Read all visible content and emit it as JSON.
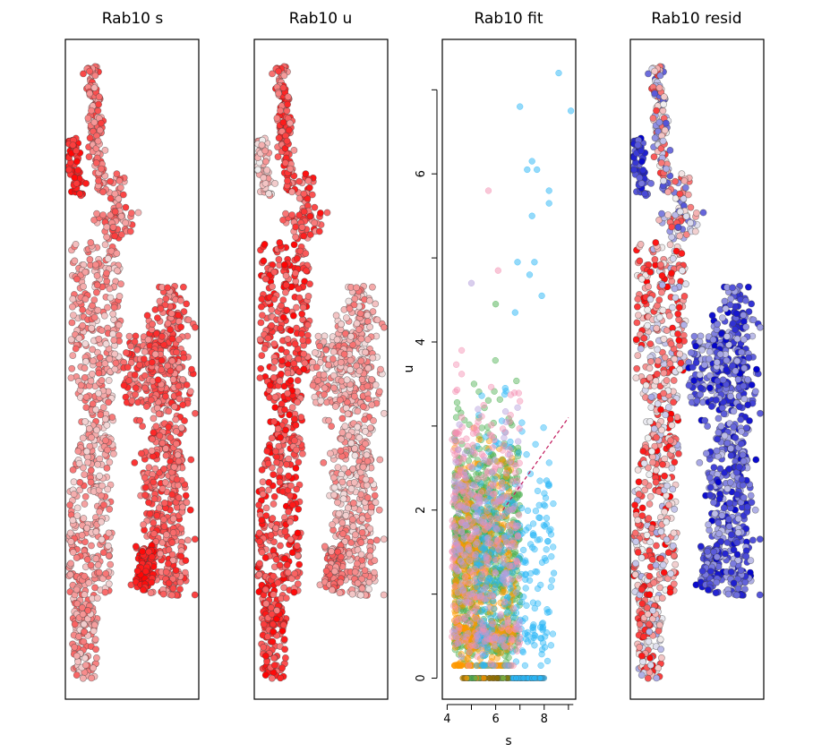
{
  "chart_data": [
    {
      "type": "scatter",
      "title": "Rab10 s",
      "panel": "embedding",
      "color_scale": [
        "#f0f0f0",
        "#ff0000"
      ],
      "clusters": [
        {
          "name": "upper-stem",
          "points": 220,
          "value_low": 0.25,
          "value_high": 0.75
        },
        {
          "name": "left-hook",
          "points": 60,
          "value_low": 0.7,
          "value_high": 1.0
        },
        {
          "name": "left-column",
          "points": 650,
          "value_low": 0.1,
          "value_high": 0.6
        },
        {
          "name": "right-loop",
          "points": 700,
          "value_low": 0.35,
          "value_high": 0.85
        },
        {
          "name": "bottom-blob",
          "points": 80,
          "value_low": 0.8,
          "value_high": 1.0
        }
      ]
    },
    {
      "type": "scatter",
      "title": "Rab10 u",
      "panel": "embedding",
      "color_scale": [
        "#f0f0f0",
        "#ff0000"
      ],
      "clusters": [
        {
          "name": "upper-stem",
          "points": 220,
          "value_low": 0.35,
          "value_high": 0.95
        },
        {
          "name": "left-hook",
          "points": 60,
          "value_low": 0.0,
          "value_high": 0.4
        },
        {
          "name": "left-column",
          "points": 650,
          "value_low": 0.45,
          "value_high": 1.0
        },
        {
          "name": "right-loop",
          "points": 700,
          "value_low": 0.05,
          "value_high": 0.55
        },
        {
          "name": "bottom-blob",
          "points": 80,
          "value_low": 0.3,
          "value_high": 0.7
        }
      ]
    },
    {
      "type": "scatter",
      "title": "Rab10 fit",
      "panel": "phase",
      "xlabel": "s",
      "ylabel": "u",
      "xlim": [
        3.8,
        9.3
      ],
      "ylim": [
        -0.25,
        7.6
      ],
      "xticks": [
        4,
        6,
        8
      ],
      "yticks": [
        0,
        2,
        4,
        6
      ],
      "fit_line": {
        "x": [
          6.3,
          9.0
        ],
        "y": [
          2.0,
          3.1
        ],
        "color": "#c2185b"
      },
      "series": [
        {
          "name": "green",
          "color": "#4caf50",
          "count": 900,
          "s_range": [
            4.3,
            7.0
          ],
          "u_mean": 1.6
        },
        {
          "name": "orange",
          "color": "#ff9800",
          "count": 450,
          "s_range": [
            4.3,
            6.8
          ],
          "u_mean": 1.2
        },
        {
          "name": "cyan",
          "color": "#29b6f6",
          "count": 300,
          "s_range": [
            5.2,
            8.4
          ],
          "u_mean": 1.5
        },
        {
          "name": "pink",
          "color": "#f48fb1",
          "count": 300,
          "s_range": [
            4.2,
            7.0
          ],
          "u_mean": 2.0
        },
        {
          "name": "lavender",
          "color": "#b39ddb",
          "count": 150,
          "s_range": [
            4.3,
            7.0
          ],
          "u_mean": 1.8
        }
      ],
      "zero_row": {
        "u": 0,
        "s_range": [
          4.6,
          8.0
        ]
      },
      "outliers": [
        {
          "s": 8.6,
          "u": 7.2,
          "color": "#29b6f6"
        },
        {
          "s": 9.1,
          "u": 6.75,
          "color": "#29b6f6"
        },
        {
          "s": 7.0,
          "u": 6.8,
          "color": "#29b6f6"
        },
        {
          "s": 7.5,
          "u": 6.15,
          "color": "#29b6f6"
        },
        {
          "s": 7.3,
          "u": 6.05,
          "color": "#29b6f6"
        },
        {
          "s": 7.7,
          "u": 6.05,
          "color": "#29b6f6"
        },
        {
          "s": 8.2,
          "u": 5.8,
          "color": "#29b6f6"
        },
        {
          "s": 5.7,
          "u": 5.8,
          "color": "#f48fb1"
        },
        {
          "s": 7.5,
          "u": 5.5,
          "color": "#29b6f6"
        },
        {
          "s": 8.2,
          "u": 5.65,
          "color": "#29b6f6"
        },
        {
          "s": 6.9,
          "u": 4.95,
          "color": "#29b6f6"
        },
        {
          "s": 7.6,
          "u": 4.95,
          "color": "#29b6f6"
        },
        {
          "s": 6.1,
          "u": 4.85,
          "color": "#f48fb1"
        },
        {
          "s": 7.4,
          "u": 4.8,
          "color": "#29b6f6"
        },
        {
          "s": 5.0,
          "u": 4.7,
          "color": "#b39ddb"
        },
        {
          "s": 7.9,
          "u": 4.55,
          "color": "#29b6f6"
        },
        {
          "s": 6.0,
          "u": 4.45,
          "color": "#4caf50"
        },
        {
          "s": 6.8,
          "u": 4.35,
          "color": "#29b6f6"
        },
        {
          "s": 8.4,
          "u": 1.25,
          "color": "#29b6f6"
        },
        {
          "s": 8.1,
          "u": 2.35,
          "color": "#29b6f6"
        }
      ]
    },
    {
      "type": "scatter",
      "title": "Rab10 resid",
      "panel": "embedding",
      "color_scale": [
        "#0000cc",
        "#f0f0f0",
        "#ff0000"
      ],
      "clusters": [
        {
          "name": "upper-stem",
          "points": 220,
          "value_low": -0.7,
          "value_high": 0.8
        },
        {
          "name": "left-hook",
          "points": 60,
          "value_low": -1.0,
          "value_high": -0.5
        },
        {
          "name": "left-column",
          "points": 650,
          "value_low": -0.3,
          "value_high": 1.0
        },
        {
          "name": "right-loop",
          "points": 700,
          "value_low": -1.0,
          "value_high": -0.2
        },
        {
          "name": "bottom-blob",
          "points": 80,
          "value_low": -1.0,
          "value_high": -0.3
        }
      ]
    }
  ]
}
